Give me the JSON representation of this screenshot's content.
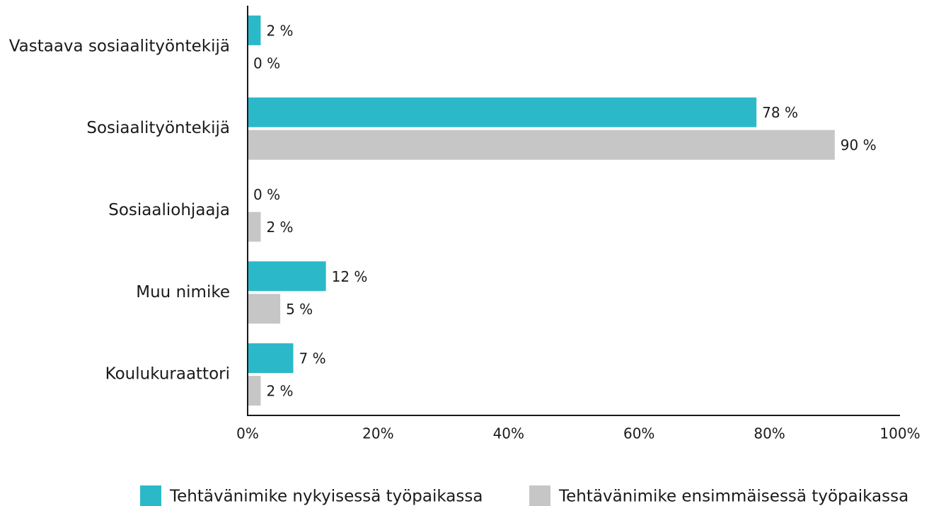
{
  "chart_data": {
    "type": "bar",
    "orientation": "horizontal",
    "categories": [
      "Vastaava sosiaalityöntekijä",
      "Sosiaalityöntekijä",
      "Sosiaaliohjaaja",
      "Muu nimike",
      "Koulukuraattori"
    ],
    "series": [
      {
        "name": "Tehtävänimike nykyisessä työpaikassa",
        "color": "#2bb9c9",
        "values": [
          2,
          78,
          0,
          12,
          7
        ],
        "value_labels": [
          "2 %",
          "78 %",
          "0 %",
          "12 %",
          "7 %"
        ]
      },
      {
        "name": "Tehtävänimike ensimmäisessä työpaikassa",
        "color": "#c6c6c6",
        "values": [
          0,
          90,
          2,
          5,
          2
        ],
        "value_labels": [
          "0 %",
          "90 %",
          "2 %",
          "5 %",
          "2 %"
        ]
      }
    ],
    "xlim": [
      0,
      100
    ],
    "xticks": [
      {
        "value": 0,
        "label": "0%"
      },
      {
        "value": 20,
        "label": "20%"
      },
      {
        "value": 40,
        "label": "40%"
      },
      {
        "value": 60,
        "label": "60%"
      },
      {
        "value": 80,
        "label": "80%"
      },
      {
        "value": 100,
        "label": "100%"
      }
    ],
    "legend": "bottom"
  }
}
